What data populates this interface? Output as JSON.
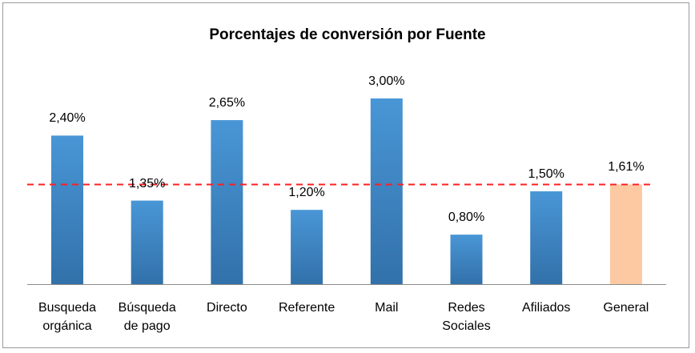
{
  "chart_data": {
    "type": "bar",
    "title": "Porcentajes de conversión por Fuente",
    "categories": [
      [
        "Busqueda",
        "orgánica"
      ],
      [
        "Búsqueda",
        "de pago"
      ],
      [
        "Directo"
      ],
      [
        "Referente"
      ],
      [
        "Mail"
      ],
      [
        "Redes",
        "Sociales"
      ],
      [
        "Afiliados"
      ],
      [
        "General"
      ]
    ],
    "values": [
      2.4,
      1.35,
      2.65,
      1.2,
      3.0,
      0.8,
      1.5,
      1.61
    ],
    "value_labels": [
      "2,40%",
      "1,35%",
      "2,65%",
      "1,20%",
      "3,00%",
      "0,80%",
      "1,50%",
      "1,61%"
    ],
    "reference_line": {
      "value": 1.61,
      "style": "dashed",
      "color": "#ff1f1f"
    },
    "colors": {
      "bar_top": "#4996d6",
      "bar_bottom": "#3271aa",
      "highlight": "#fcc9a2"
    },
    "highlight_index": 7,
    "xlabel": "",
    "ylabel": "",
    "ylim": [
      0,
      3.0
    ],
    "grid": false,
    "legend": "none"
  }
}
